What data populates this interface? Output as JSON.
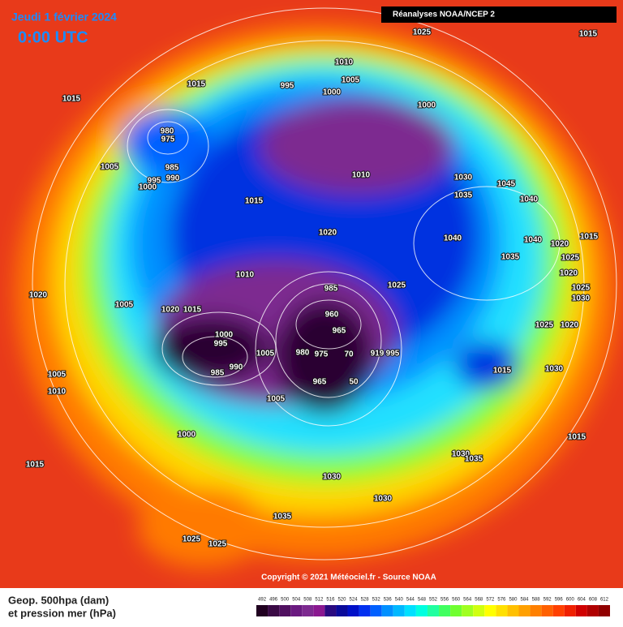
{
  "header": {
    "date": "Jeudi 1 février 2024",
    "time": "0:00 UTC",
    "source": "Réanalyses NOAA/NCEP 2"
  },
  "isobars": [
    "1015",
    "1025",
    "1015",
    "1015",
    "1010",
    "995",
    "1005",
    "1000",
    "1000",
    "980",
    "975",
    "985",
    "990",
    "995",
    "1000",
    "1005",
    "1010",
    "1015",
    "1030",
    "1035",
    "1045",
    "1040",
    "1020",
    "1040",
    "1040",
    "1020",
    "1015",
    "1035",
    "1025",
    "1020",
    "1025",
    "1030",
    "1010",
    "1025",
    "985",
    "960",
    "965",
    "1020",
    "1015",
    "1005",
    "1020",
    "1000",
    "995",
    "1005",
    "980",
    "975",
    "70",
    "919",
    "995",
    "990",
    "985",
    "965",
    "50",
    "1025",
    "1020",
    "1015",
    "1030",
    "1005",
    "1010",
    "1005",
    "1000",
    "1015",
    "1030",
    "1035",
    "1015",
    "1030",
    "1030",
    "1035",
    "1025",
    "1025"
  ],
  "footer": {
    "copyright": "Copyright © 2021 Météociel.fr - Source NOAA"
  },
  "legend": {
    "title": [
      "Geop. 500hpa (dam)",
      "et pression mer (hPa)"
    ],
    "items": [
      {
        "label": 492,
        "color": "#200020"
      },
      {
        "label": 496,
        "color": "#3a0a45"
      },
      {
        "label": 500,
        "color": "#501060"
      },
      {
        "label": 504,
        "color": "#6a1a80"
      },
      {
        "label": 508,
        "color": "#7d2a90"
      },
      {
        "label": 512,
        "color": "#8a1890"
      },
      {
        "label": 516,
        "color": "#2a0a80"
      },
      {
        "label": 520,
        "color": "#0a0a9a"
      },
      {
        "label": 524,
        "color": "#0010c8"
      },
      {
        "label": 528,
        "color": "#0030f0"
      },
      {
        "label": 532,
        "color": "#0060ff"
      },
      {
        "label": 536,
        "color": "#0090ff"
      },
      {
        "label": 540,
        "color": "#00b8ff"
      },
      {
        "label": 544,
        "color": "#00e0ff"
      },
      {
        "label": 548,
        "color": "#00ffe0"
      },
      {
        "label": 552,
        "color": "#20ffa0"
      },
      {
        "label": 556,
        "color": "#40ff60"
      },
      {
        "label": 560,
        "color": "#70ff30"
      },
      {
        "label": 564,
        "color": "#a0ff20"
      },
      {
        "label": 568,
        "color": "#d0ff10"
      },
      {
        "label": 572,
        "color": "#ffff00"
      },
      {
        "label": 576,
        "color": "#ffe000"
      },
      {
        "label": 580,
        "color": "#ffc000"
      },
      {
        "label": 584,
        "color": "#ffa000"
      },
      {
        "label": 588,
        "color": "#ff8000"
      },
      {
        "label": 592,
        "color": "#ff6000"
      },
      {
        "label": 596,
        "color": "#ff4000"
      },
      {
        "label": 600,
        "color": "#f02000"
      },
      {
        "label": 604,
        "color": "#d00000"
      },
      {
        "label": 608,
        "color": "#b00000"
      },
      {
        "label": 612,
        "color": "#900000"
      }
    ]
  }
}
